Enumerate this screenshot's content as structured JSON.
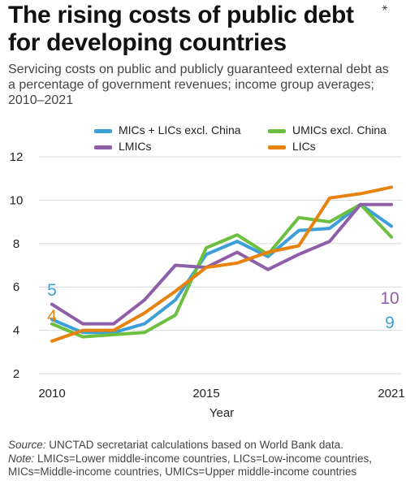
{
  "title": "The rising costs of public debt for developing countries",
  "corner_mark": "⁎",
  "subtitle": "Servicing costs on public and publicly guaranteed external debt as a percentage of government revenues; income group averages; 2010–2021",
  "footnote": {
    "source_label": "Source:",
    "source_text": " UNCTAD secretariat calculations based on World Bank data.",
    "note_label": "Note:",
    "note_text": " LMICs=Lower middle-income countries, LICs=Low-income countries, MICs=Middle-income countries, UMICs=Upper middle-income countries"
  },
  "chart_data": {
    "type": "line",
    "title": "",
    "xlabel": "Year",
    "ylabel": "",
    "xlim": [
      2010,
      2021
    ],
    "ylim": [
      2,
      12
    ],
    "x_ticks": [
      "2010",
      "2015",
      "2021"
    ],
    "x_tick_values": [
      2010,
      2015,
      2021
    ],
    "y_ticks": [
      "2",
      "4",
      "6",
      "8",
      "10",
      "12"
    ],
    "y_tick_values": [
      2,
      4,
      6,
      8,
      10,
      12
    ],
    "grid": "horizontal",
    "legend": "top",
    "x": [
      2010,
      2011,
      2012,
      2013,
      2014,
      2015,
      2016,
      2017,
      2018,
      2019,
      2020,
      2021
    ],
    "series": [
      {
        "name": "MICs + LICs excl. China",
        "color": "#3d9fd8",
        "values": [
          4.5,
          3.9,
          3.9,
          4.3,
          5.4,
          7.5,
          8.1,
          7.4,
          8.6,
          8.7,
          9.8,
          8.8
        ]
      },
      {
        "name": "UMICs excl. China",
        "color": "#6cbf3f",
        "values": [
          4.3,
          3.7,
          3.8,
          3.9,
          4.7,
          7.8,
          8.4,
          7.5,
          9.2,
          9.0,
          9.8,
          8.3
        ]
      },
      {
        "name": "LMICs",
        "color": "#8e5fa8",
        "values": [
          5.2,
          4.3,
          4.3,
          5.4,
          7.0,
          6.9,
          7.6,
          6.8,
          7.5,
          8.1,
          9.8,
          9.8
        ]
      },
      {
        "name": "LICs",
        "color": "#e8820f",
        "values": [
          3.5,
          4.0,
          4.0,
          4.8,
          5.8,
          6.9,
          7.1,
          7.6,
          7.9,
          10.1,
          10.3,
          10.6
        ]
      }
    ],
    "annotations": [
      {
        "text": "5",
        "color": "#3d9fd8"
      },
      {
        "text": "4",
        "color": "#e8820f"
      },
      {
        "text": "10",
        "color": "#8e5fa8"
      },
      {
        "text": "9",
        "color": "#3d9fd8"
      }
    ]
  }
}
